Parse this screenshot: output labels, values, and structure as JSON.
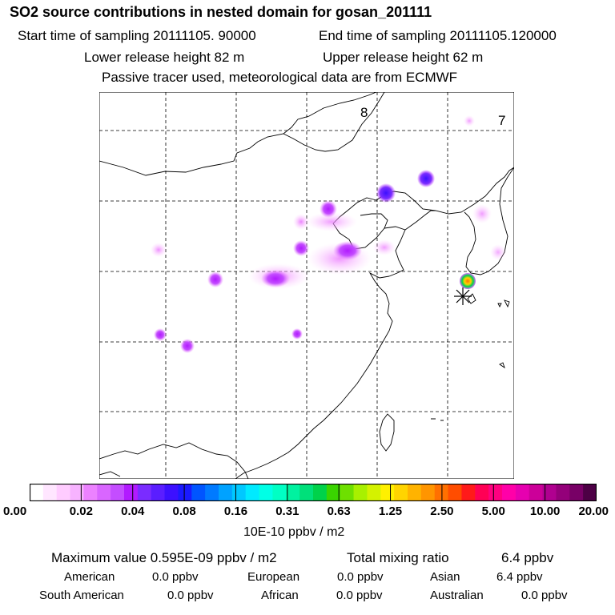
{
  "header": {
    "title": "SO2 source contributions in nested domain for gosan_201111",
    "start_time": "Start time of sampling 20111105. 90000",
    "end_time": "End time of sampling 20111105.120000",
    "lower_height": "Lower release height   82 m",
    "upper_height": "Upper release height   62 m",
    "info": "Passive tracer used, meteorological data are from ECMWF"
  },
  "map": {
    "labels": [
      "8",
      "7"
    ],
    "receptor_marker": "asterisk-icon",
    "plumes": [
      {
        "name": "hotspot-beijing-ne",
        "level": 0.06
      },
      {
        "name": "hotspot-beijing",
        "level": 0.05
      },
      {
        "name": "hotspot-hebei",
        "level": 0.04
      },
      {
        "name": "hotspot-shanxi",
        "level": 0.04
      },
      {
        "name": "hotspot-shandong",
        "level": 0.03
      },
      {
        "name": "hotspot-henan",
        "level": 0.03
      },
      {
        "name": "hotspot-shaanxi",
        "level": 0.04
      },
      {
        "name": "hotspot-gosan",
        "level": 3.0
      }
    ]
  },
  "colorbar": {
    "ticks": [
      "0.00",
      "0.02",
      "0.04",
      "0.08",
      "0.16",
      "0.31",
      "0.63",
      "1.25",
      "2.50",
      "5.00",
      "10.00",
      "20.00"
    ],
    "colors": [
      "#ffffff",
      "#ffe6ff",
      "#ffccff",
      "#f7b3ff",
      "#ec82ff",
      "#d966ff",
      "#c44dff",
      "#b21aff",
      "#7a2cff",
      "#5a1eff",
      "#3c10ff",
      "#1a1aff",
      "#0055ff",
      "#007aff",
      "#00a2ff",
      "#00c8ff",
      "#00eaff",
      "#00ffe6",
      "#00ffc4",
      "#00f2a0",
      "#00e07a",
      "#00d24a",
      "#3ad400",
      "#6ee000",
      "#a8f000",
      "#d4f200",
      "#fff000",
      "#ffd400",
      "#ffb300",
      "#ff9500",
      "#ff7000",
      "#ff4d00",
      "#ff1a1a",
      "#ff0055",
      "#ff0080",
      "#ff00a8",
      "#e600b0",
      "#cc0099",
      "#b00090",
      "#94007a",
      "#780066",
      "#4d0045"
    ],
    "unit": "10E-10 ppbv / m2"
  },
  "summary": {
    "max_label": "Maximum value  0.595E-09 ppbv / m2",
    "total_label": "Total mixing ratio",
    "total_value": "6.4 ppbv",
    "regions": [
      {
        "name": "American",
        "value": "0.0 ppbv"
      },
      {
        "name": "European",
        "value": "0.0 ppbv"
      },
      {
        "name": "Asian",
        "value": "6.4 ppbv"
      },
      {
        "name": "South American",
        "value": "0.0 ppbv"
      },
      {
        "name": "African",
        "value": "0.0 ppbv"
      },
      {
        "name": "Australian",
        "value": "0.0 ppbv"
      }
    ]
  }
}
